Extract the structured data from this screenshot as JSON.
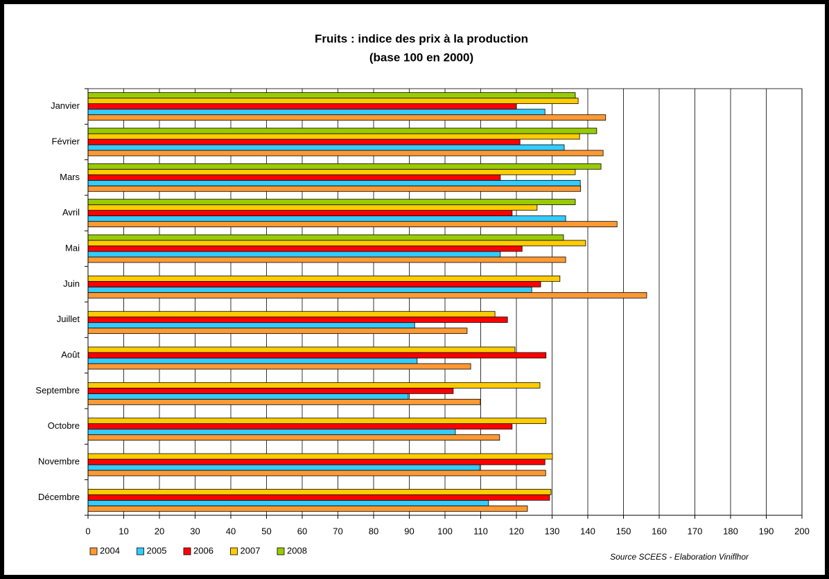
{
  "chart_data": {
    "type": "hbar",
    "title": "Fruits : indice des prix à la production",
    "subtitle": "(base 100 en 2000)",
    "source": "Source SCEES - Elaboration Viniflhor",
    "categories": [
      "Janvier",
      "Février",
      "Mars",
      "Avril",
      "Mai",
      "Juin",
      "Juillet",
      "Août",
      "Septembre",
      "Octobre",
      "Novembre",
      "Décembre"
    ],
    "series": [
      {
        "name": "2004",
        "color": "#ff9933",
        "values": [
          145,
          144.3,
          138,
          148.2,
          133.8,
          156.5,
          106.2,
          107.2,
          109.9,
          115.3,
          128.2,
          123.1
        ]
      },
      {
        "name": "2005",
        "color": "#33ccff",
        "values": [
          128,
          133.4,
          137.9,
          133.8,
          115.5,
          124.3,
          91.5,
          92.2,
          89.7,
          102.9,
          109.7,
          112.2
        ]
      },
      {
        "name": "2006",
        "color": "#ff0000",
        "values": [
          120,
          121,
          115.5,
          118.8,
          121.6,
          126.8,
          117.5,
          128.3,
          102.3,
          118.8,
          128,
          129.3
        ]
      },
      {
        "name": "2007",
        "color": "#ffcc00",
        "values": [
          137.3,
          137.7,
          136.5,
          125.8,
          139.4,
          132.2,
          114,
          119.6,
          126.6,
          128.3,
          130.1,
          129.7
        ]
      },
      {
        "name": "2008",
        "color": "#99cc00",
        "values": [
          136.5,
          142.5,
          143.7,
          136.5,
          133.2,
          null,
          null,
          null,
          null,
          null,
          null,
          null
        ]
      }
    ],
    "xlim": [
      0,
      200
    ],
    "xticks": [
      0,
      10,
      20,
      30,
      40,
      50,
      60,
      70,
      80,
      90,
      100,
      110,
      120,
      130,
      140,
      150,
      160,
      170,
      180,
      190,
      200
    ],
    "grid": true
  }
}
